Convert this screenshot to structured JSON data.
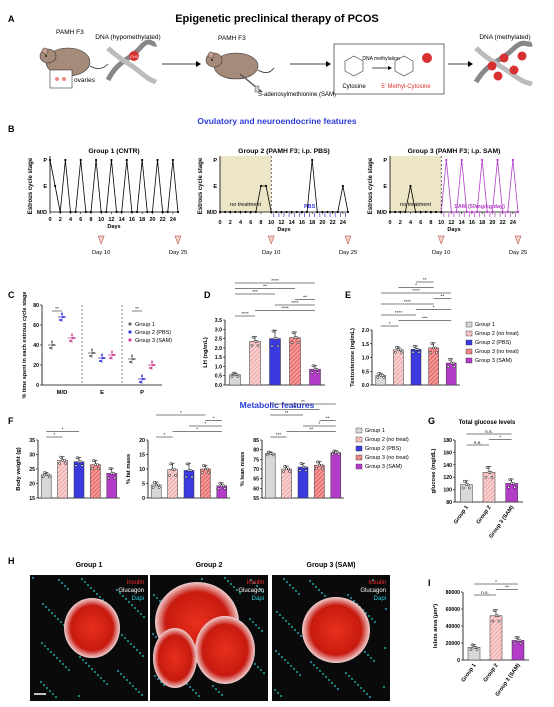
{
  "figure": {
    "panel_a": {
      "letter": "A",
      "title": "Epigenetic preclinical therapy of PCOS",
      "mouse1_label": "PAMH F3",
      "ovaries_label": "ovaries",
      "dna_hypo_label": "DNA (hypomethylated)",
      "mouse2_label": "PAMH F3",
      "sam_label": "S-adenosylmethionine (SAM)",
      "cytosine_label": "Cytosine",
      "dna_methylation_label": "DNA methylation",
      "methyl_cytosine_label": "5' Methyl-Cytosine",
      "dna_meth_label": "DNA (methylated)",
      "ch3_label": "CH3"
    },
    "section_ovulatory": "Ovulatory and neuroendocrine features",
    "section_metabolic": "Metabolic features",
    "panel_b": {
      "letter": "B",
      "ylabel": "Estrous cycle stage",
      "xlabel": "Days",
      "stage_ticks": [
        "P",
        "E",
        "M/D"
      ],
      "day_ticks": [
        "0",
        "2",
        "4",
        "6",
        "8",
        "10",
        "12",
        "14",
        "16",
        "18",
        "20",
        "22",
        "24"
      ],
      "groups": [
        {
          "title": "Group 1 (CNTR)"
        },
        {
          "title": "Group 2 (PAMH F3; i.p. PBS)",
          "no_treat": "no treatment",
          "treat": "PBS"
        },
        {
          "title": "Group 3 (PAMH F3; i.p. SAM)",
          "no_treat": "no treatment",
          "treat": "SAM (50mg/kg/day)"
        }
      ],
      "day10": "Day 10",
      "day25": "Day 25"
    },
    "panel_c": {
      "letter": "C",
      "ylabel": "% time spent in each estrous cycle stage",
      "categories": [
        "M/D",
        "E",
        "P"
      ],
      "yticks": [
        "0",
        "20",
        "40",
        "60",
        "80"
      ],
      "legend": [
        "Group 1",
        "Group 2 (PBS)",
        "Group 3 (SAM)"
      ],
      "sig": "**"
    },
    "panel_d": {
      "letter": "D",
      "ylabel": "LH (ng/mL)",
      "yticks": [
        "0.0",
        "0.5",
        "1.0",
        "1.5",
        "2.0",
        "2.5",
        "3.0",
        "3.5"
      ],
      "sig": [
        "****",
        "****",
        "****",
        "**",
        "***",
        "**",
        "****"
      ]
    },
    "panel_e": {
      "letter": "E",
      "ylabel": "Testosterone (ng/mL)",
      "yticks": [
        "0.0",
        "0.5",
        "1.0",
        "1.5",
        "2.0"
      ],
      "sig": [
        "*",
        "***",
        "****",
        "*",
        "****",
        "**",
        "****",
        "*",
        "**"
      ],
      "legend": [
        "Group 1",
        "Group 2 (no treat)",
        "Group 2 (PBS)",
        "Group 3 (no treat)",
        "Group 3 (SAM)"
      ]
    },
    "panel_f": {
      "letter": "F",
      "body_weight": {
        "ylabel": "Body weight (g)",
        "yticks": [
          "15",
          "20",
          "25",
          "30",
          "35"
        ]
      },
      "fat_mass": {
        "ylabel": "% fat mass",
        "yticks": [
          "0",
          "5",
          "10",
          "15",
          "20"
        ]
      },
      "lean_mass": {
        "ylabel": "% lean mass",
        "yticks": [
          "55",
          "60",
          "65",
          "70",
          "75",
          "80",
          "85"
        ]
      },
      "legend": [
        "Group 1",
        "Group 2 (no treat)",
        "Group 2 (PBS)",
        "Group 3 (no treat)",
        "Group 3 (SAM)"
      ],
      "sig_bw": [
        "*",
        "*"
      ],
      "sig_fat": [
        "*",
        "*",
        "*",
        "*",
        "*"
      ],
      "sig_lean": [
        "***",
        "**",
        "*",
        "**",
        "**",
        "**",
        "**"
      ]
    },
    "panel_g": {
      "letter": "G",
      "title": "Total glucose levels",
      "ylabel": "glucose (mg/dL)",
      "yticks": [
        "80",
        "100",
        "120",
        "140",
        "160",
        "180"
      ],
      "categories": [
        "Group 1",
        "Group 2",
        "Group 3 (SAM)"
      ],
      "sig": [
        "n.s.",
        "*",
        "n.s."
      ]
    },
    "panel_h": {
      "letter": "H",
      "titles": [
        "Group 1",
        "Group 2",
        "Group 3 (SAM)"
      ],
      "stain_insulin": "Insulin",
      "stain_glucagon": "Glucagon",
      "stain_dapi": "Dapi"
    },
    "panel_i": {
      "letter": "I",
      "ylabel": "Islets area (µm²)",
      "yticks": [
        "0",
        "20000",
        "40000",
        "60000",
        "80000"
      ],
      "categories": [
        "Group 1",
        "Group 2",
        "Group 3 (SAM)"
      ],
      "sig": [
        "n.s.",
        "**",
        "*"
      ]
    },
    "colors": {
      "group1": "#d8d8d8",
      "group2_no_treat": "#f5b8b8",
      "group2_pbs": "#3a3ae0",
      "group3_no_treat": "#f06a6a",
      "group3_sam": "#b23cc8",
      "section_title": "#2a3bd8",
      "notreat_bg": "#ece6c6"
    }
  },
  "chart_data": [
    {
      "type": "line",
      "title": "Group 1 (CNTR)",
      "xlabel": "Days",
      "ylabel": "Estrous cycle stage",
      "x": [
        0,
        1,
        2,
        3,
        4,
        5,
        6,
        7,
        8,
        9,
        10,
        11,
        12,
        13,
        14,
        15,
        16,
        17,
        18,
        19,
        20,
        21,
        22,
        23,
        24,
        25
      ],
      "y_stage": [
        3,
        2,
        1,
        3,
        1,
        1,
        3,
        1,
        1,
        3,
        1,
        1,
        3,
        1,
        1,
        3,
        1,
        1,
        3,
        1,
        1,
        3,
        1,
        1,
        3,
        1
      ],
      "stage_levels": {
        "1": "M/D",
        "2": "E",
        "3": "P"
      }
    },
    {
      "type": "line",
      "title": "Group 2 (PAMH F3; i.p. PBS)",
      "xlabel": "Days",
      "ylabel": "Estrous cycle stage",
      "x": [
        0,
        1,
        2,
        3,
        4,
        5,
        6,
        7,
        8,
        9,
        10,
        11,
        12,
        13,
        14,
        15,
        16,
        17,
        18,
        19,
        20,
        21,
        22,
        23,
        24,
        25
      ],
      "y_stage": [
        1,
        1,
        1,
        1,
        1,
        1,
        1,
        1,
        2,
        2,
        1,
        1,
        1,
        1,
        1,
        1,
        1,
        1,
        3,
        1,
        1,
        1,
        1,
        1,
        2,
        1
      ],
      "stage_levels": {
        "1": "M/D",
        "2": "E",
        "3": "P"
      }
    },
    {
      "type": "line",
      "title": "Group 3 (PAMH F3; i.p. SAM)",
      "xlabel": "Days",
      "ylabel": "Estrous cycle stage",
      "x": [
        0,
        1,
        2,
        3,
        4,
        5,
        6,
        7,
        8,
        9,
        10,
        11,
        12,
        13,
        14,
        15,
        16,
        17,
        18,
        19,
        20,
        21,
        22,
        23,
        24,
        25
      ],
      "y_stage": [
        1,
        1,
        1,
        1,
        2,
        1,
        1,
        1,
        1,
        1,
        1,
        3,
        1,
        1,
        3,
        1,
        1,
        1,
        3,
        1,
        1,
        3,
        1,
        1,
        3,
        1
      ],
      "stage_levels": {
        "1": "M/D",
        "2": "E",
        "3": "P"
      }
    },
    {
      "type": "scatter",
      "ylabel": "% time spent in each estrous cycle stage",
      "categories": [
        "M/D",
        "E",
        "P"
      ],
      "series": [
        {
          "name": "Group 1",
          "values": [
            40,
            32,
            26
          ]
        },
        {
          "name": "Group 2 (PBS)",
          "values": [
            68,
            27,
            6
          ]
        },
        {
          "name": "Group 3 (SAM)",
          "values": [
            47,
            30,
            20
          ]
        }
      ],
      "ylim": [
        0,
        80
      ]
    },
    {
      "type": "bar",
      "ylabel": "LH (ng/mL)",
      "categories": [
        "Group 1",
        "Group 2 (no treat)",
        "Group 2 (PBS)",
        "Group 3 (no treat)",
        "Group 3 (SAM)"
      ],
      "values": [
        0.55,
        2.35,
        2.5,
        2.55,
        0.85
      ],
      "errors": [
        0.1,
        0.25,
        0.45,
        0.3,
        0.2
      ],
      "ylim": [
        0,
        3.5
      ]
    },
    {
      "type": "bar",
      "ylabel": "Testosterone (ng/mL)",
      "categories": [
        "Group 1",
        "Group 2 (no treat)",
        "Group 2 (PBS)",
        "Group 3 (no treat)",
        "Group 3 (SAM)"
      ],
      "values": [
        0.35,
        1.28,
        1.3,
        1.35,
        0.8
      ],
      "errors": [
        0.08,
        0.1,
        0.12,
        0.18,
        0.15
      ],
      "ylim": [
        0,
        2.0
      ]
    },
    {
      "type": "bar",
      "ylabel": "Body weight (g)",
      "categories": [
        "Group 1",
        "Group 2 (no treat)",
        "Group 2 (PBS)",
        "Group 3 (no treat)",
        "Group 3 (SAM)"
      ],
      "values": [
        23,
        28,
        27.5,
        26.5,
        23.5
      ],
      "errors": [
        0.8,
        1.2,
        1.5,
        1.5,
        1.8
      ],
      "ylim": [
        15,
        35
      ]
    },
    {
      "type": "bar",
      "ylabel": "% fat mass",
      "categories": [
        "Group 1",
        "Group 2 (no treat)",
        "Group 2 (PBS)",
        "Group 3 (no treat)",
        "Group 3 (SAM)"
      ],
      "values": [
        4.5,
        9.8,
        9.5,
        10.0,
        4.2
      ],
      "errors": [
        1.0,
        2.2,
        2.5,
        1.3,
        1.0
      ],
      "ylim": [
        0,
        20
      ]
    },
    {
      "type": "bar",
      "ylabel": "% lean mass",
      "categories": [
        "Group 1",
        "Group 2 (no treat)",
        "Group 2 (PBS)",
        "Group 3 (no treat)",
        "Group 3 (SAM)"
      ],
      "values": [
        78,
        70,
        71,
        72,
        78.5
      ],
      "errors": [
        0.8,
        1.5,
        2.0,
        1.8,
        0.9
      ],
      "ylim": [
        55,
        85
      ]
    },
    {
      "type": "bar",
      "title": "Total glucose levels",
      "ylabel": "glucose (mg/dL)",
      "categories": [
        "Group 1",
        "Group 2",
        "Group 3 (SAM)"
      ],
      "values": [
        108,
        128,
        110
      ],
      "errors": [
        6,
        9,
        7
      ],
      "ylim": [
        80,
        180
      ]
    },
    {
      "type": "bar",
      "ylabel": "Islets area (µm²)",
      "categories": [
        "Group 1",
        "Group 2",
        "Group 3 (SAM)"
      ],
      "values": [
        15000,
        52000,
        23000
      ],
      "errors": [
        3000,
        7000,
        4000
      ],
      "ylim": [
        0,
        80000
      ]
    }
  ]
}
